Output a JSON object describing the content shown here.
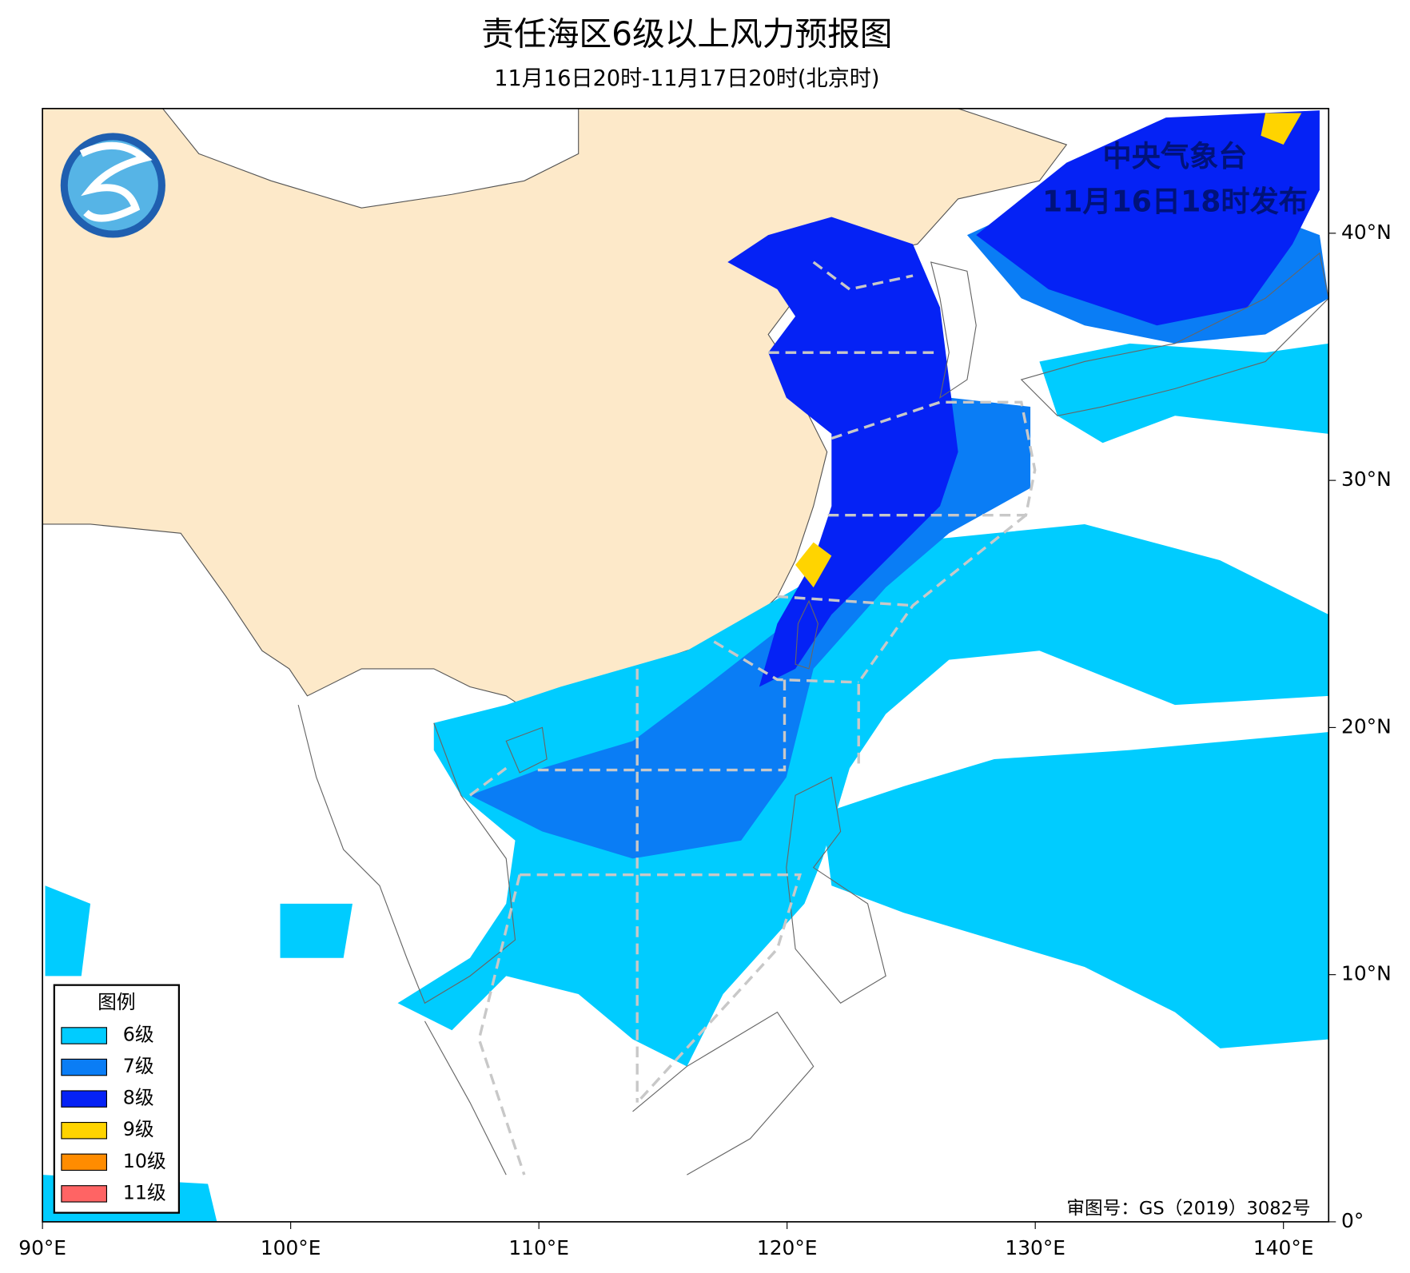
{
  "header": {
    "title": "责任海区6级以上风力预报图",
    "subtitle": "11月16日20时-11月17日20时(北京时)"
  },
  "map": {
    "agency": "中央气象台",
    "issued": "11月16日18时发布",
    "approval": "审图号：GS（2019）3082号",
    "xticks": [
      {
        "value": 90,
        "label": "90°E"
      },
      {
        "value": 100,
        "label": "100°E"
      },
      {
        "value": 110,
        "label": "110°E"
      },
      {
        "value": 120,
        "label": "120°E"
      },
      {
        "value": 130,
        "label": "130°E"
      },
      {
        "value": 140,
        "label": "140°E"
      }
    ],
    "yticks": [
      {
        "value": 0,
        "label": "0°"
      },
      {
        "value": 10,
        "label": "10°N"
      },
      {
        "value": 20,
        "label": "20°N"
      },
      {
        "value": 30,
        "label": "30°N"
      },
      {
        "value": 40,
        "label": "40°N"
      }
    ],
    "legend": {
      "title": "图例",
      "items": [
        {
          "label": "6级",
          "color": "#00ccff"
        },
        {
          "label": "7级",
          "color": "#0a7df5"
        },
        {
          "label": "8级",
          "color": "#0522f5"
        },
        {
          "label": "9级",
          "color": "#ffd400"
        },
        {
          "label": "10级",
          "color": "#ff8c00"
        },
        {
          "label": "11级",
          "color": "#ff6464"
        }
      ]
    }
  }
}
